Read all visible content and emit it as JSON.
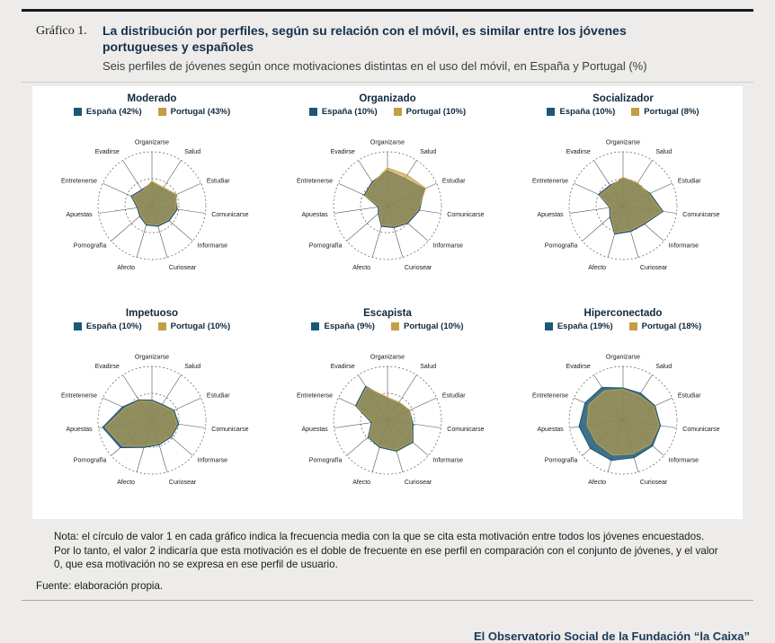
{
  "page": {
    "kicker": "Gráfico 1.",
    "title_line1": "La distribución por perfiles, según su relación con el móvil, es similar entre los jóvenes",
    "title_line2": "portugueses y españoles",
    "subtitle": "Seis perfiles de jóvenes según once motivaciones distintas en el uso del móvil, en España y Portugal (%)",
    "note": "Nota: el círculo de valor 1 en cada gráfico indica la frecuencia media con la que se cita esta motivación entre todos los jóvenes encuestados. Por lo tanto, el valor 2 indicaría que esta motivación es el doble de frecuente en ese perfil en comparación con el conjunto de jóvenes, y el valor 0, que esa motivación no se expresa en ese perfil de usuario.",
    "source": "Fuente: elaboración propia.",
    "footer": "El Observatorio Social de la Fundación “la Caixa”"
  },
  "colors": {
    "espana": "#1b5878",
    "portugal": "#c49e44"
  },
  "chart_data": [
    {
      "type": "radar",
      "title": "Moderado",
      "rmax": 2,
      "grid_circles": [
        1,
        2
      ],
      "categories": [
        "Organizarse",
        "Salud",
        "Estudiar",
        "Comunicarse",
        "Informarse",
        "Curiosear",
        "Afecto",
        "Pornografía",
        "Apuestas",
        "Entretenerse",
        "Evadirse"
      ],
      "series": [
        {
          "id": "espana",
          "name": "España (42%)",
          "color": "#1b5878",
          "values": [
            0.85,
            0.75,
            0.95,
            0.95,
            0.85,
            0.8,
            0.75,
            0.6,
            0.55,
            0.85,
            0.7
          ]
        },
        {
          "id": "portugal",
          "name": "Portugal (43%)",
          "color": "#c49e44",
          "values": [
            0.9,
            0.8,
            1.0,
            0.9,
            0.8,
            0.75,
            0.7,
            0.55,
            0.5,
            0.8,
            0.65
          ]
        }
      ]
    },
    {
      "type": "radar",
      "title": "Organizado",
      "rmax": 2,
      "grid_circles": [
        1,
        2
      ],
      "categories": [
        "Organizarse",
        "Salud",
        "Estudiar",
        "Comunicarse",
        "Informarse",
        "Curiosear",
        "Afecto",
        "Pornografía",
        "Apuestas",
        "Entretenerse",
        "Evadirse"
      ],
      "series": [
        {
          "id": "espana",
          "name": "España (10%)",
          "color": "#1b5878",
          "values": [
            1.3,
            1.2,
            1.5,
            1.2,
            1.0,
            0.85,
            0.8,
            0.45,
            0.35,
            0.95,
            1.05
          ]
        },
        {
          "id": "portugal",
          "name": "Portugal (10%)",
          "color": "#c49e44",
          "values": [
            1.4,
            1.35,
            1.55,
            1.15,
            0.95,
            0.8,
            0.75,
            0.4,
            0.3,
            0.9,
            1.0
          ]
        }
      ]
    },
    {
      "type": "radar",
      "title": "Socializador",
      "rmax": 2,
      "grid_circles": [
        1,
        2
      ],
      "categories": [
        "Organizarse",
        "Salud",
        "Estudiar",
        "Comunicarse",
        "Informarse",
        "Curiosear",
        "Afecto",
        "Pornografía",
        "Apuestas",
        "Entretenerse",
        "Evadirse"
      ],
      "series": [
        {
          "id": "espana",
          "name": "España (10%)",
          "color": "#1b5878",
          "values": [
            1.0,
            0.95,
            1.1,
            1.5,
            1.05,
            1.0,
            1.1,
            0.65,
            0.5,
            1.0,
            0.9
          ]
        },
        {
          "id": "portugal",
          "name": "Portugal (8%)",
          "color": "#c49e44",
          "values": [
            1.05,
            1.0,
            1.05,
            1.45,
            1.0,
            0.95,
            1.05,
            0.6,
            0.45,
            0.95,
            0.85
          ]
        }
      ]
    },
    {
      "type": "radar",
      "title": "Impetuoso",
      "rmax": 2,
      "grid_circles": [
        1,
        2
      ],
      "categories": [
        "Organizarse",
        "Salud",
        "Estudiar",
        "Comunicarse",
        "Informarse",
        "Curiosear",
        "Afecto",
        "Pornografía",
        "Apuestas",
        "Entretenerse",
        "Evadirse"
      ],
      "series": [
        {
          "id": "espana",
          "name": "España (10%)",
          "color": "#1b5878",
          "values": [
            0.75,
            0.7,
            0.9,
            1.0,
            0.95,
            0.95,
            1.05,
            1.55,
            1.85,
            1.2,
            0.9
          ]
        },
        {
          "id": "portugal",
          "name": "Portugal (10%)",
          "color": "#c49e44",
          "values": [
            0.7,
            0.65,
            0.85,
            0.95,
            0.9,
            0.9,
            1.0,
            1.45,
            1.75,
            1.1,
            0.85
          ]
        }
      ]
    },
    {
      "type": "radar",
      "title": "Escapista",
      "rmax": 2,
      "grid_circles": [
        1,
        2
      ],
      "categories": [
        "Organizarse",
        "Salud",
        "Estudiar",
        "Comunicarse",
        "Informarse",
        "Curiosear",
        "Afecto",
        "Pornografía",
        "Apuestas",
        "Entretenerse",
        "Evadirse"
      ],
      "series": [
        {
          "id": "espana",
          "name": "España (9%)",
          "color": "#1b5878",
          "values": [
            0.8,
            0.75,
            0.9,
            0.95,
            1.25,
            1.2,
            1.05,
            0.95,
            0.6,
            1.3,
            1.5
          ]
        },
        {
          "id": "portugal",
          "name": "Portugal (10%)",
          "color": "#c49e44",
          "values": [
            0.85,
            0.8,
            0.9,
            0.9,
            1.2,
            1.15,
            1.0,
            0.9,
            0.55,
            1.25,
            1.45
          ]
        }
      ]
    },
    {
      "type": "radar",
      "title": "Hiperconectado",
      "rmax": 2,
      "grid_circles": [
        1,
        2
      ],
      "categories": [
        "Organizarse",
        "Salud",
        "Estudiar",
        "Comunicarse",
        "Informarse",
        "Curiosear",
        "Afecto",
        "Pornografía",
        "Apuestas",
        "Entretenerse",
        "Evadirse"
      ],
      "series": [
        {
          "id": "espana",
          "name": "España (19%)",
          "color": "#1b5878",
          "values": [
            1.2,
            1.2,
            1.3,
            1.4,
            1.45,
            1.45,
            1.55,
            1.6,
            1.65,
            1.55,
            1.45
          ]
        },
        {
          "id": "portugal",
          "name": "Portugal (18%)",
          "color": "#c49e44",
          "values": [
            1.15,
            1.1,
            1.25,
            1.35,
            1.35,
            1.3,
            1.35,
            1.3,
            1.35,
            1.4,
            1.3
          ]
        }
      ]
    }
  ]
}
